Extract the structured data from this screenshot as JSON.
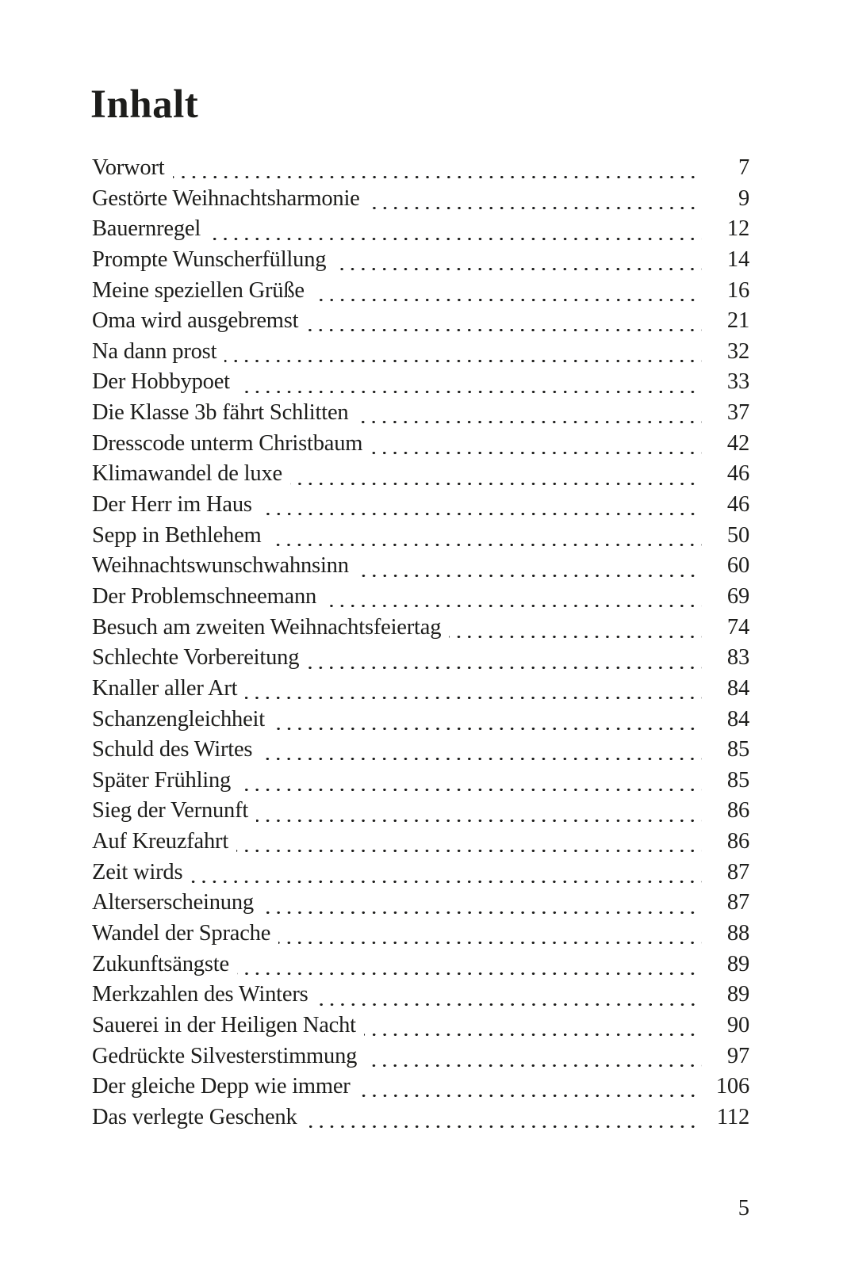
{
  "page": {
    "title": "Inhalt",
    "folio": "5"
  },
  "colors": {
    "text": "#1d1d1b",
    "background": "#ffffff"
  },
  "toc": {
    "entries": [
      {
        "label": "Vorwort",
        "page": "7"
      },
      {
        "label": "Gestörte Weihnachtsharmonie",
        "page": "9"
      },
      {
        "label": "Bauernregel",
        "page": "12"
      },
      {
        "label": "Prompte Wunscherfüllung",
        "page": "14"
      },
      {
        "label": "Meine speziellen Grüße",
        "page": "16"
      },
      {
        "label": "Oma wird ausgebremst",
        "page": "21"
      },
      {
        "label": "Na dann prost",
        "page": "32"
      },
      {
        "label": "Der Hobbypoet",
        "page": "33"
      },
      {
        "label": "Die Klasse 3b fährt Schlitten",
        "page": "37"
      },
      {
        "label": "Dresscode unterm Christbaum",
        "page": "42"
      },
      {
        "label": "Klimawandel de luxe",
        "page": "46"
      },
      {
        "label": "Der Herr im Haus",
        "page": "46"
      },
      {
        "label": "Sepp in Bethlehem",
        "page": "50"
      },
      {
        "label": "Weihnachtswunschwahnsinn",
        "page": "60"
      },
      {
        "label": "Der Problemschneemann",
        "page": "69"
      },
      {
        "label": "Besuch am zweiten Weihnachtsfeiertag",
        "page": "74"
      },
      {
        "label": "Schlechte Vorbereitung",
        "page": "83"
      },
      {
        "label": "Knaller aller Art",
        "page": "84"
      },
      {
        "label": "Schanzengleichheit",
        "page": "84"
      },
      {
        "label": "Schuld des Wirtes",
        "page": "85"
      },
      {
        "label": "Später Frühling",
        "page": "85"
      },
      {
        "label": "Sieg der Vernunft",
        "page": "86"
      },
      {
        "label": "Auf Kreuzfahrt",
        "page": "86"
      },
      {
        "label": "Zeit wirds",
        "page": "87"
      },
      {
        "label": "Alterserscheinung",
        "page": "87"
      },
      {
        "label": "Wandel der Sprache",
        "page": "88"
      },
      {
        "label": "Zukunftsängste",
        "page": "89"
      },
      {
        "label": "Merkzahlen des Winters",
        "page": "89"
      },
      {
        "label": "Sauerei in der Heiligen Nacht",
        "page": "90"
      },
      {
        "label": "Gedrückte Silvesterstimmung",
        "page": "97"
      },
      {
        "label": "Der gleiche Depp wie immer",
        "page": "106"
      },
      {
        "label": "Das verlegte Geschenk",
        "page": "112"
      }
    ]
  }
}
